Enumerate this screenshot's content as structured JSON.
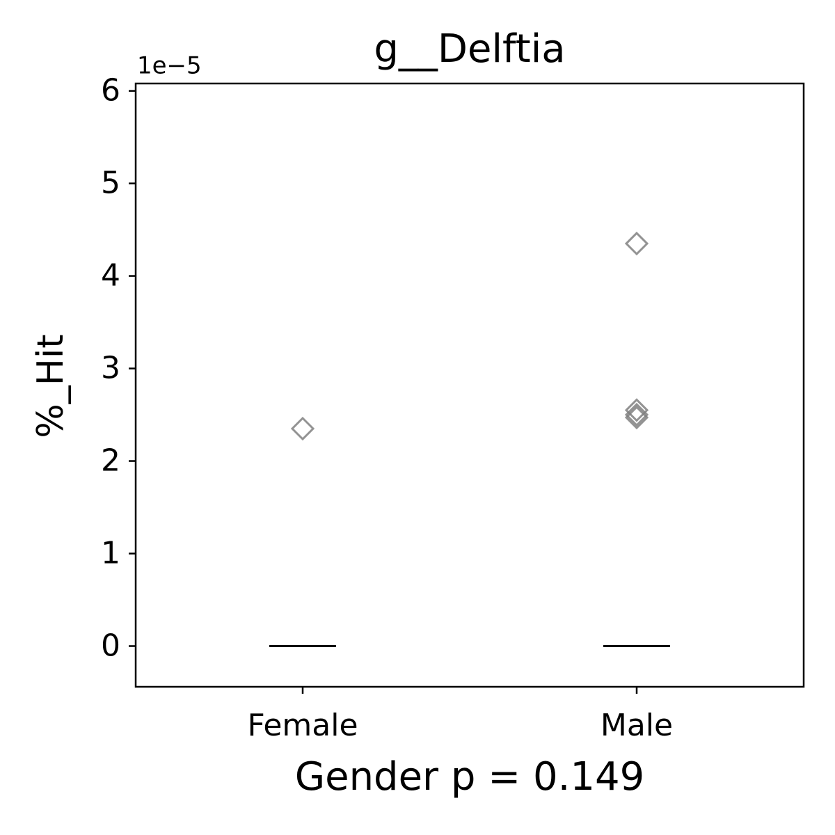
{
  "chart_data": {
    "type": "box",
    "title": "g__Delftia",
    "ylabel": "%_Hit",
    "xlabel": "Gender p = 0.149",
    "offset_label": "1e−5",
    "categories": [
      "Female",
      "Male"
    ],
    "medians": [
      0,
      0
    ],
    "outliers": [
      [
        2.35
      ],
      [
        4.35,
        2.55,
        2.5,
        2.47
      ]
    ],
    "outlier_color": "#808080",
    "ylim": [
      -0.44,
      6.08
    ],
    "yticks": [
      0,
      1,
      2,
      3,
      4,
      5,
      6
    ]
  }
}
